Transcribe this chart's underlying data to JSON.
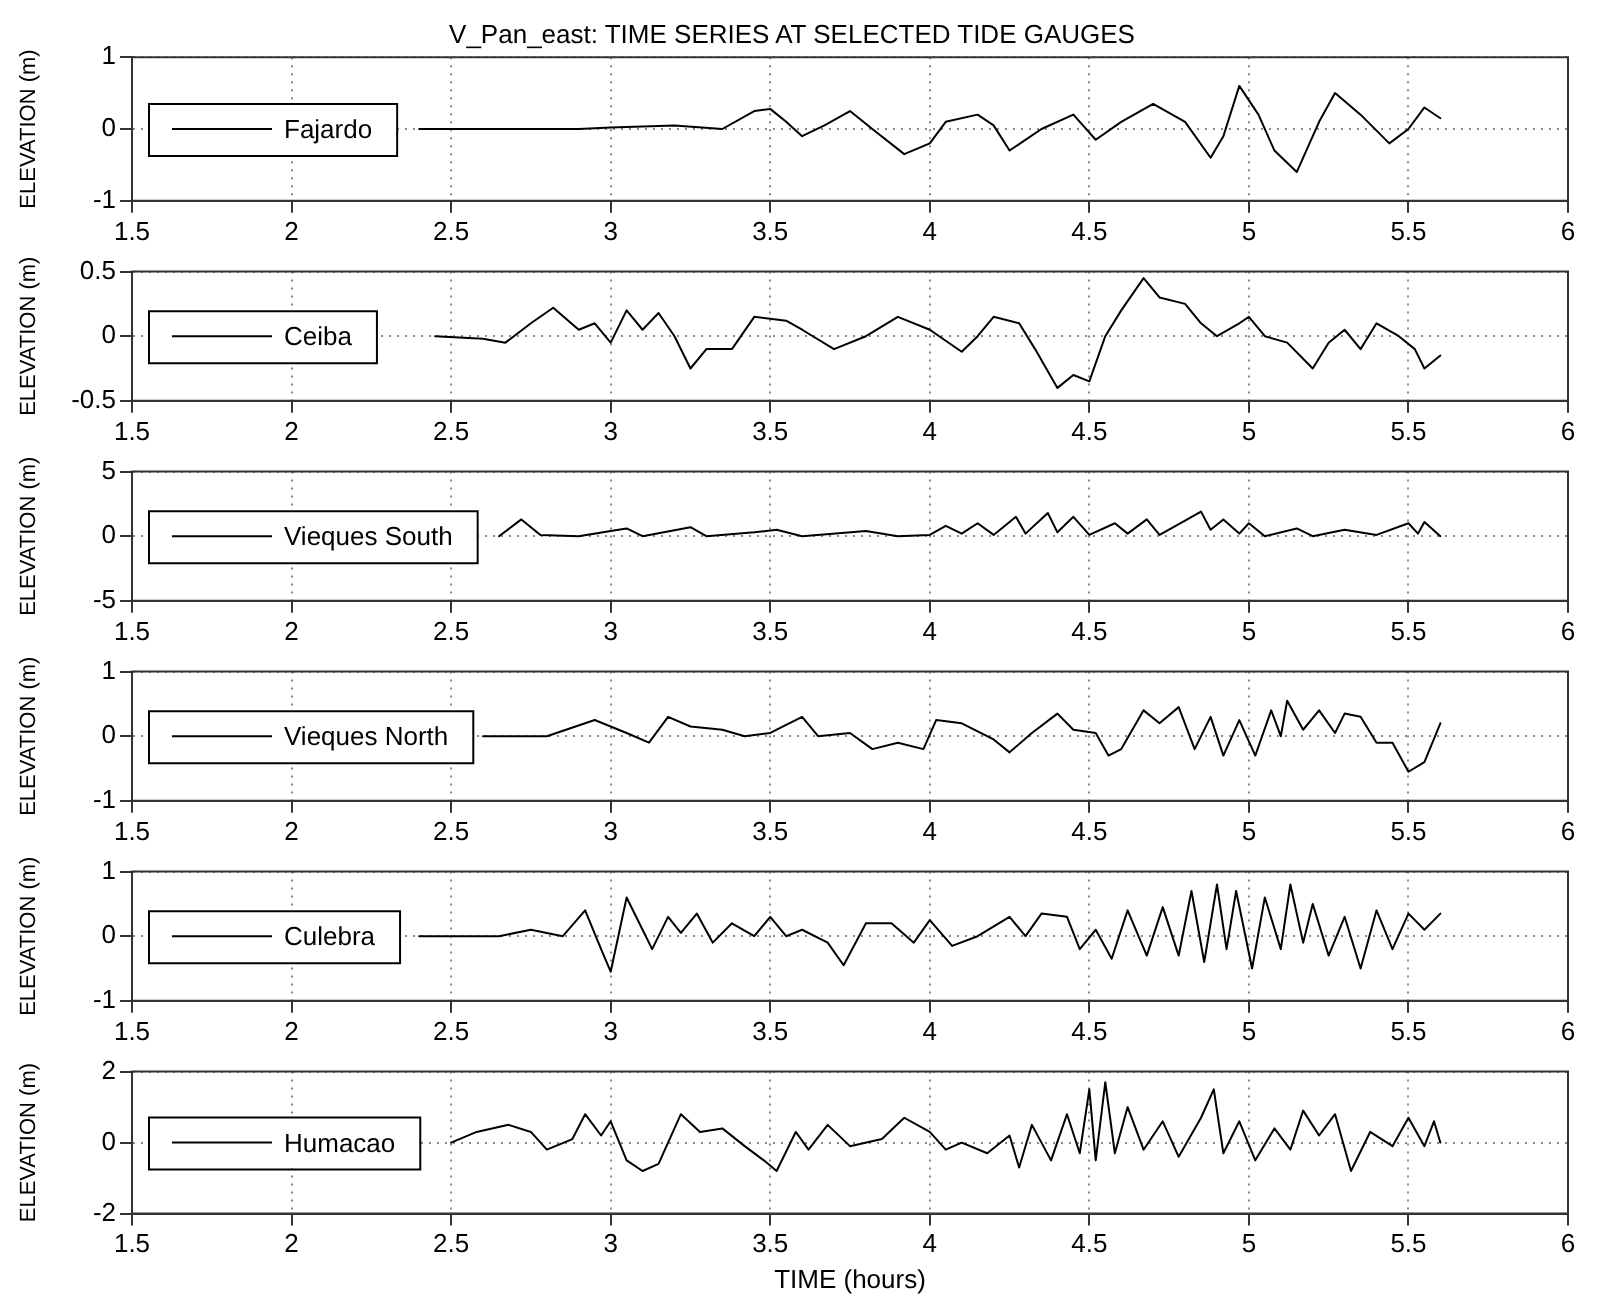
{
  "chart_data": [
    {
      "type": "line",
      "title": "V_Pan_east: TIME SERIES AT SELECTED TIDE GAUGES",
      "ylabel": "ELEVATION (m)",
      "xlim": [
        1.5,
        6
      ],
      "xticks": [
        1.5,
        2,
        2.5,
        3,
        3.5,
        4,
        4.5,
        5,
        5.5,
        6
      ],
      "ylim": [
        -1,
        1
      ],
      "yticks": [
        -1,
        0,
        1
      ],
      "grid": true,
      "legend": "left",
      "marker": "none",
      "x": [
        2.4,
        2.9,
        3.0,
        3.2,
        3.35,
        3.45,
        3.5,
        3.55,
        3.6,
        3.67,
        3.75,
        3.82,
        3.92,
        4.0,
        4.05,
        4.15,
        4.2,
        4.25,
        4.35,
        4.45,
        4.52,
        4.6,
        4.7,
        4.8,
        4.88,
        4.92,
        4.97,
        5.03,
        5.08,
        5.15,
        5.22,
        5.27,
        5.35,
        5.44,
        5.5,
        5.55,
        5.6
      ],
      "series": [
        {
          "name": "Fajardo",
          "color": "#000000",
          "values": [
            0,
            0,
            0.02,
            0.05,
            0,
            0.25,
            0.28,
            0.1,
            -0.1,
            0.05,
            0.25,
            0.0,
            -0.35,
            -0.2,
            0.1,
            0.2,
            0.05,
            -0.3,
            0.0,
            0.2,
            -0.15,
            0.1,
            0.35,
            0.1,
            -0.4,
            -0.1,
            0.6,
            0.2,
            -0.3,
            -0.6,
            0.1,
            0.5,
            0.2,
            -0.2,
            0,
            0.3,
            0.15
          ]
        }
      ]
    },
    {
      "type": "line",
      "ylabel": "ELEVATION (m)",
      "xlim": [
        1.5,
        6
      ],
      "xticks": [
        1.5,
        2,
        2.5,
        3,
        3.5,
        4,
        4.5,
        5,
        5.5,
        6
      ],
      "ylim": [
        -0.5,
        0.5
      ],
      "yticks": [
        -0.5,
        0,
        0.5
      ],
      "grid": true,
      "legend": "left",
      "marker": "none",
      "x": [
        2.45,
        2.6,
        2.67,
        2.75,
        2.82,
        2.9,
        2.95,
        3.0,
        3.05,
        3.1,
        3.15,
        3.2,
        3.25,
        3.3,
        3.38,
        3.45,
        3.55,
        3.6,
        3.7,
        3.8,
        3.9,
        4.0,
        4.1,
        4.15,
        4.2,
        4.28,
        4.33,
        4.4,
        4.45,
        4.5,
        4.55,
        4.6,
        4.67,
        4.72,
        4.8,
        4.85,
        4.9,
        4.97,
        5.0,
        5.05,
        5.12,
        5.2,
        5.25,
        5.3,
        5.35,
        5.4,
        5.47,
        5.52,
        5.55,
        5.6
      ],
      "series": [
        {
          "name": "Ceiba",
          "color": "#000000",
          "values": [
            0,
            -0.02,
            -0.05,
            0.1,
            0.22,
            0.05,
            0.1,
            -0.05,
            0.2,
            0.05,
            0.18,
            0.0,
            -0.25,
            -0.1,
            -0.1,
            0.15,
            0.12,
            0.05,
            -0.1,
            0.0,
            0.15,
            0.05,
            -0.12,
            0.0,
            0.15,
            0.1,
            -0.1,
            -0.4,
            -0.3,
            -0.35,
            0.0,
            0.2,
            0.45,
            0.3,
            0.25,
            0.1,
            0.0,
            0.1,
            0.15,
            0.0,
            -0.05,
            -0.25,
            -0.05,
            0.05,
            -0.1,
            0.1,
            0.0,
            -0.1,
            -0.25,
            -0.15
          ]
        }
      ]
    },
    {
      "type": "line",
      "ylabel": "ELEVATION (m)",
      "xlim": [
        1.5,
        6
      ],
      "xticks": [
        1.5,
        2,
        2.5,
        3,
        3.5,
        4,
        4.5,
        5,
        5.5,
        6
      ],
      "ylim": [
        -5,
        5
      ],
      "yticks": [
        -5,
        0,
        5
      ],
      "grid": true,
      "legend": "left",
      "marker": "none",
      "x": [
        2.65,
        2.72,
        2.78,
        2.9,
        3.0,
        3.05,
        3.1,
        3.25,
        3.3,
        3.45,
        3.52,
        3.6,
        3.8,
        3.9,
        4.0,
        4.05,
        4.1,
        4.15,
        4.2,
        4.27,
        4.3,
        4.37,
        4.4,
        4.45,
        4.5,
        4.58,
        4.62,
        4.68,
        4.72,
        4.8,
        4.85,
        4.88,
        4.92,
        4.97,
        5.0,
        5.05,
        5.15,
        5.2,
        5.3,
        5.4,
        5.5,
        5.53,
        5.55,
        5.6
      ],
      "series": [
        {
          "name": "Vieques South",
          "color": "#000000",
          "values": [
            0,
            1.3,
            0.1,
            0,
            0.4,
            0.6,
            0,
            0.7,
            0,
            0.3,
            0.5,
            0,
            0.4,
            0,
            0.1,
            0.8,
            0.2,
            1.0,
            0.1,
            1.5,
            0.2,
            1.8,
            0.3,
            1.5,
            0.1,
            1.0,
            0.2,
            1.3,
            0.1,
            1.2,
            1.9,
            0.5,
            1.3,
            0.2,
            1.0,
            0,
            0.6,
            0,
            0.5,
            0.1,
            1.0,
            0.2,
            1.1,
            0
          ]
        }
      ]
    },
    {
      "type": "line",
      "ylabel": "ELEVATION (m)",
      "xlim": [
        1.5,
        6
      ],
      "xticks": [
        1.5,
        2,
        2.5,
        3,
        3.5,
        4,
        4.5,
        5,
        5.5,
        6
      ],
      "ylim": [
        -1,
        1
      ],
      "yticks": [
        -1,
        0,
        1
      ],
      "grid": true,
      "legend": "left",
      "marker": "none",
      "x": [
        2.6,
        2.8,
        2.95,
        3.05,
        3.12,
        3.18,
        3.25,
        3.35,
        3.42,
        3.5,
        3.6,
        3.65,
        3.75,
        3.82,
        3.9,
        3.98,
        4.02,
        4.1,
        4.2,
        4.25,
        4.32,
        4.4,
        4.45,
        4.52,
        4.56,
        4.6,
        4.67,
        4.72,
        4.78,
        4.83,
        4.88,
        4.92,
        4.97,
        5.02,
        5.07,
        5.1,
        5.12,
        5.17,
        5.22,
        5.27,
        5.3,
        5.35,
        5.4,
        5.45,
        5.5,
        5.55,
        5.6
      ],
      "series": [
        {
          "name": "Vieques North",
          "color": "#000000",
          "values": [
            0,
            0,
            0.25,
            0.05,
            -0.1,
            0.3,
            0.15,
            0.1,
            0.0,
            0.05,
            0.3,
            0.0,
            0.05,
            -0.2,
            -0.1,
            -0.2,
            0.25,
            0.2,
            -0.05,
            -0.25,
            0.05,
            0.35,
            0.1,
            0.05,
            -0.3,
            -0.2,
            0.4,
            0.2,
            0.45,
            -0.2,
            0.3,
            -0.3,
            0.25,
            -0.3,
            0.4,
            0.0,
            0.55,
            0.1,
            0.4,
            0.05,
            0.35,
            0.3,
            -0.1,
            -0.1,
            -0.55,
            -0.4,
            0.2
          ]
        }
      ]
    },
    {
      "type": "line",
      "ylabel": "ELEVATION (m)",
      "xlim": [
        1.5,
        6
      ],
      "xticks": [
        1.5,
        2,
        2.5,
        3,
        3.5,
        4,
        4.5,
        5,
        5.5,
        6
      ],
      "ylim": [
        -1,
        1
      ],
      "yticks": [
        -1,
        0,
        1
      ],
      "grid": true,
      "legend": "left",
      "marker": "none",
      "x": [
        2.4,
        2.65,
        2.75,
        2.85,
        2.92,
        2.97,
        3.0,
        3.05,
        3.1,
        3.13,
        3.18,
        3.22,
        3.27,
        3.32,
        3.38,
        3.45,
        3.5,
        3.55,
        3.6,
        3.68,
        3.73,
        3.8,
        3.88,
        3.95,
        4.0,
        4.07,
        4.15,
        4.25,
        4.3,
        4.35,
        4.43,
        4.47,
        4.52,
        4.57,
        4.62,
        4.68,
        4.73,
        4.78,
        4.82,
        4.86,
        4.9,
        4.93,
        4.96,
        5.01,
        5.05,
        5.1,
        5.13,
        5.17,
        5.2,
        5.25,
        5.3,
        5.35,
        5.4,
        5.45,
        5.5,
        5.55,
        5.6
      ],
      "series": [
        {
          "name": "Culebra",
          "color": "#000000",
          "values": [
            0,
            0,
            0.1,
            0.0,
            0.4,
            -0.2,
            -0.55,
            0.6,
            0.1,
            -0.2,
            0.3,
            0.05,
            0.35,
            -0.1,
            0.2,
            0.0,
            0.3,
            0.0,
            0.1,
            -0.1,
            -0.45,
            0.2,
            0.2,
            -0.1,
            0.25,
            -0.15,
            0.0,
            0.3,
            0.0,
            0.35,
            0.3,
            -0.2,
            0.1,
            -0.35,
            0.4,
            -0.3,
            0.45,
            -0.3,
            0.7,
            -0.4,
            0.8,
            -0.2,
            0.7,
            -0.5,
            0.6,
            -0.2,
            0.8,
            -0.1,
            0.5,
            -0.3,
            0.3,
            -0.5,
            0.4,
            -0.2,
            0.35,
            0.1,
            0.35
          ]
        }
      ]
    },
    {
      "type": "line",
      "xlabel": "TIME (hours)",
      "ylabel": "ELEVATION (m)",
      "xlim": [
        1.5,
        6
      ],
      "xticks": [
        1.5,
        2,
        2.5,
        3,
        3.5,
        4,
        4.5,
        5,
        5.5,
        6
      ],
      "ylim": [
        -2,
        2
      ],
      "yticks": [
        -2,
        0,
        2
      ],
      "grid": true,
      "legend": "left",
      "marker": "none",
      "x": [
        2.5,
        2.58,
        2.68,
        2.75,
        2.8,
        2.88,
        2.92,
        2.97,
        3.0,
        3.05,
        3.1,
        3.15,
        3.22,
        3.28,
        3.35,
        3.42,
        3.48,
        3.52,
        3.58,
        3.62,
        3.68,
        3.75,
        3.85,
        3.92,
        4.0,
        4.05,
        4.1,
        4.18,
        4.25,
        4.28,
        4.32,
        4.38,
        4.43,
        4.47,
        4.5,
        4.52,
        4.55,
        4.58,
        4.62,
        4.67,
        4.73,
        4.78,
        4.85,
        4.89,
        4.92,
        4.97,
        5.02,
        5.08,
        5.13,
        5.17,
        5.22,
        5.27,
        5.32,
        5.38,
        5.45,
        5.5,
        5.55,
        5.58,
        5.6
      ],
      "series": [
        {
          "name": "Humacao",
          "color": "#000000",
          "values": [
            0,
            0.3,
            0.5,
            0.3,
            -0.2,
            0.1,
            0.8,
            0.2,
            0.6,
            -0.5,
            -0.8,
            -0.6,
            0.8,
            0.3,
            0.4,
            -0.1,
            -0.5,
            -0.8,
            0.3,
            -0.2,
            0.5,
            -0.1,
            0.1,
            0.7,
            0.3,
            -0.2,
            0.0,
            -0.3,
            0.2,
            -0.7,
            0.5,
            -0.5,
            0.8,
            -0.3,
            1.5,
            -0.5,
            1.7,
            -0.3,
            1.0,
            -0.2,
            0.6,
            -0.4,
            0.7,
            1.5,
            -0.3,
            0.6,
            -0.5,
            0.4,
            -0.2,
            0.9,
            0.2,
            0.8,
            -0.8,
            0.3,
            -0.1,
            0.7,
            -0.1,
            0.6,
            0
          ]
        }
      ]
    }
  ]
}
